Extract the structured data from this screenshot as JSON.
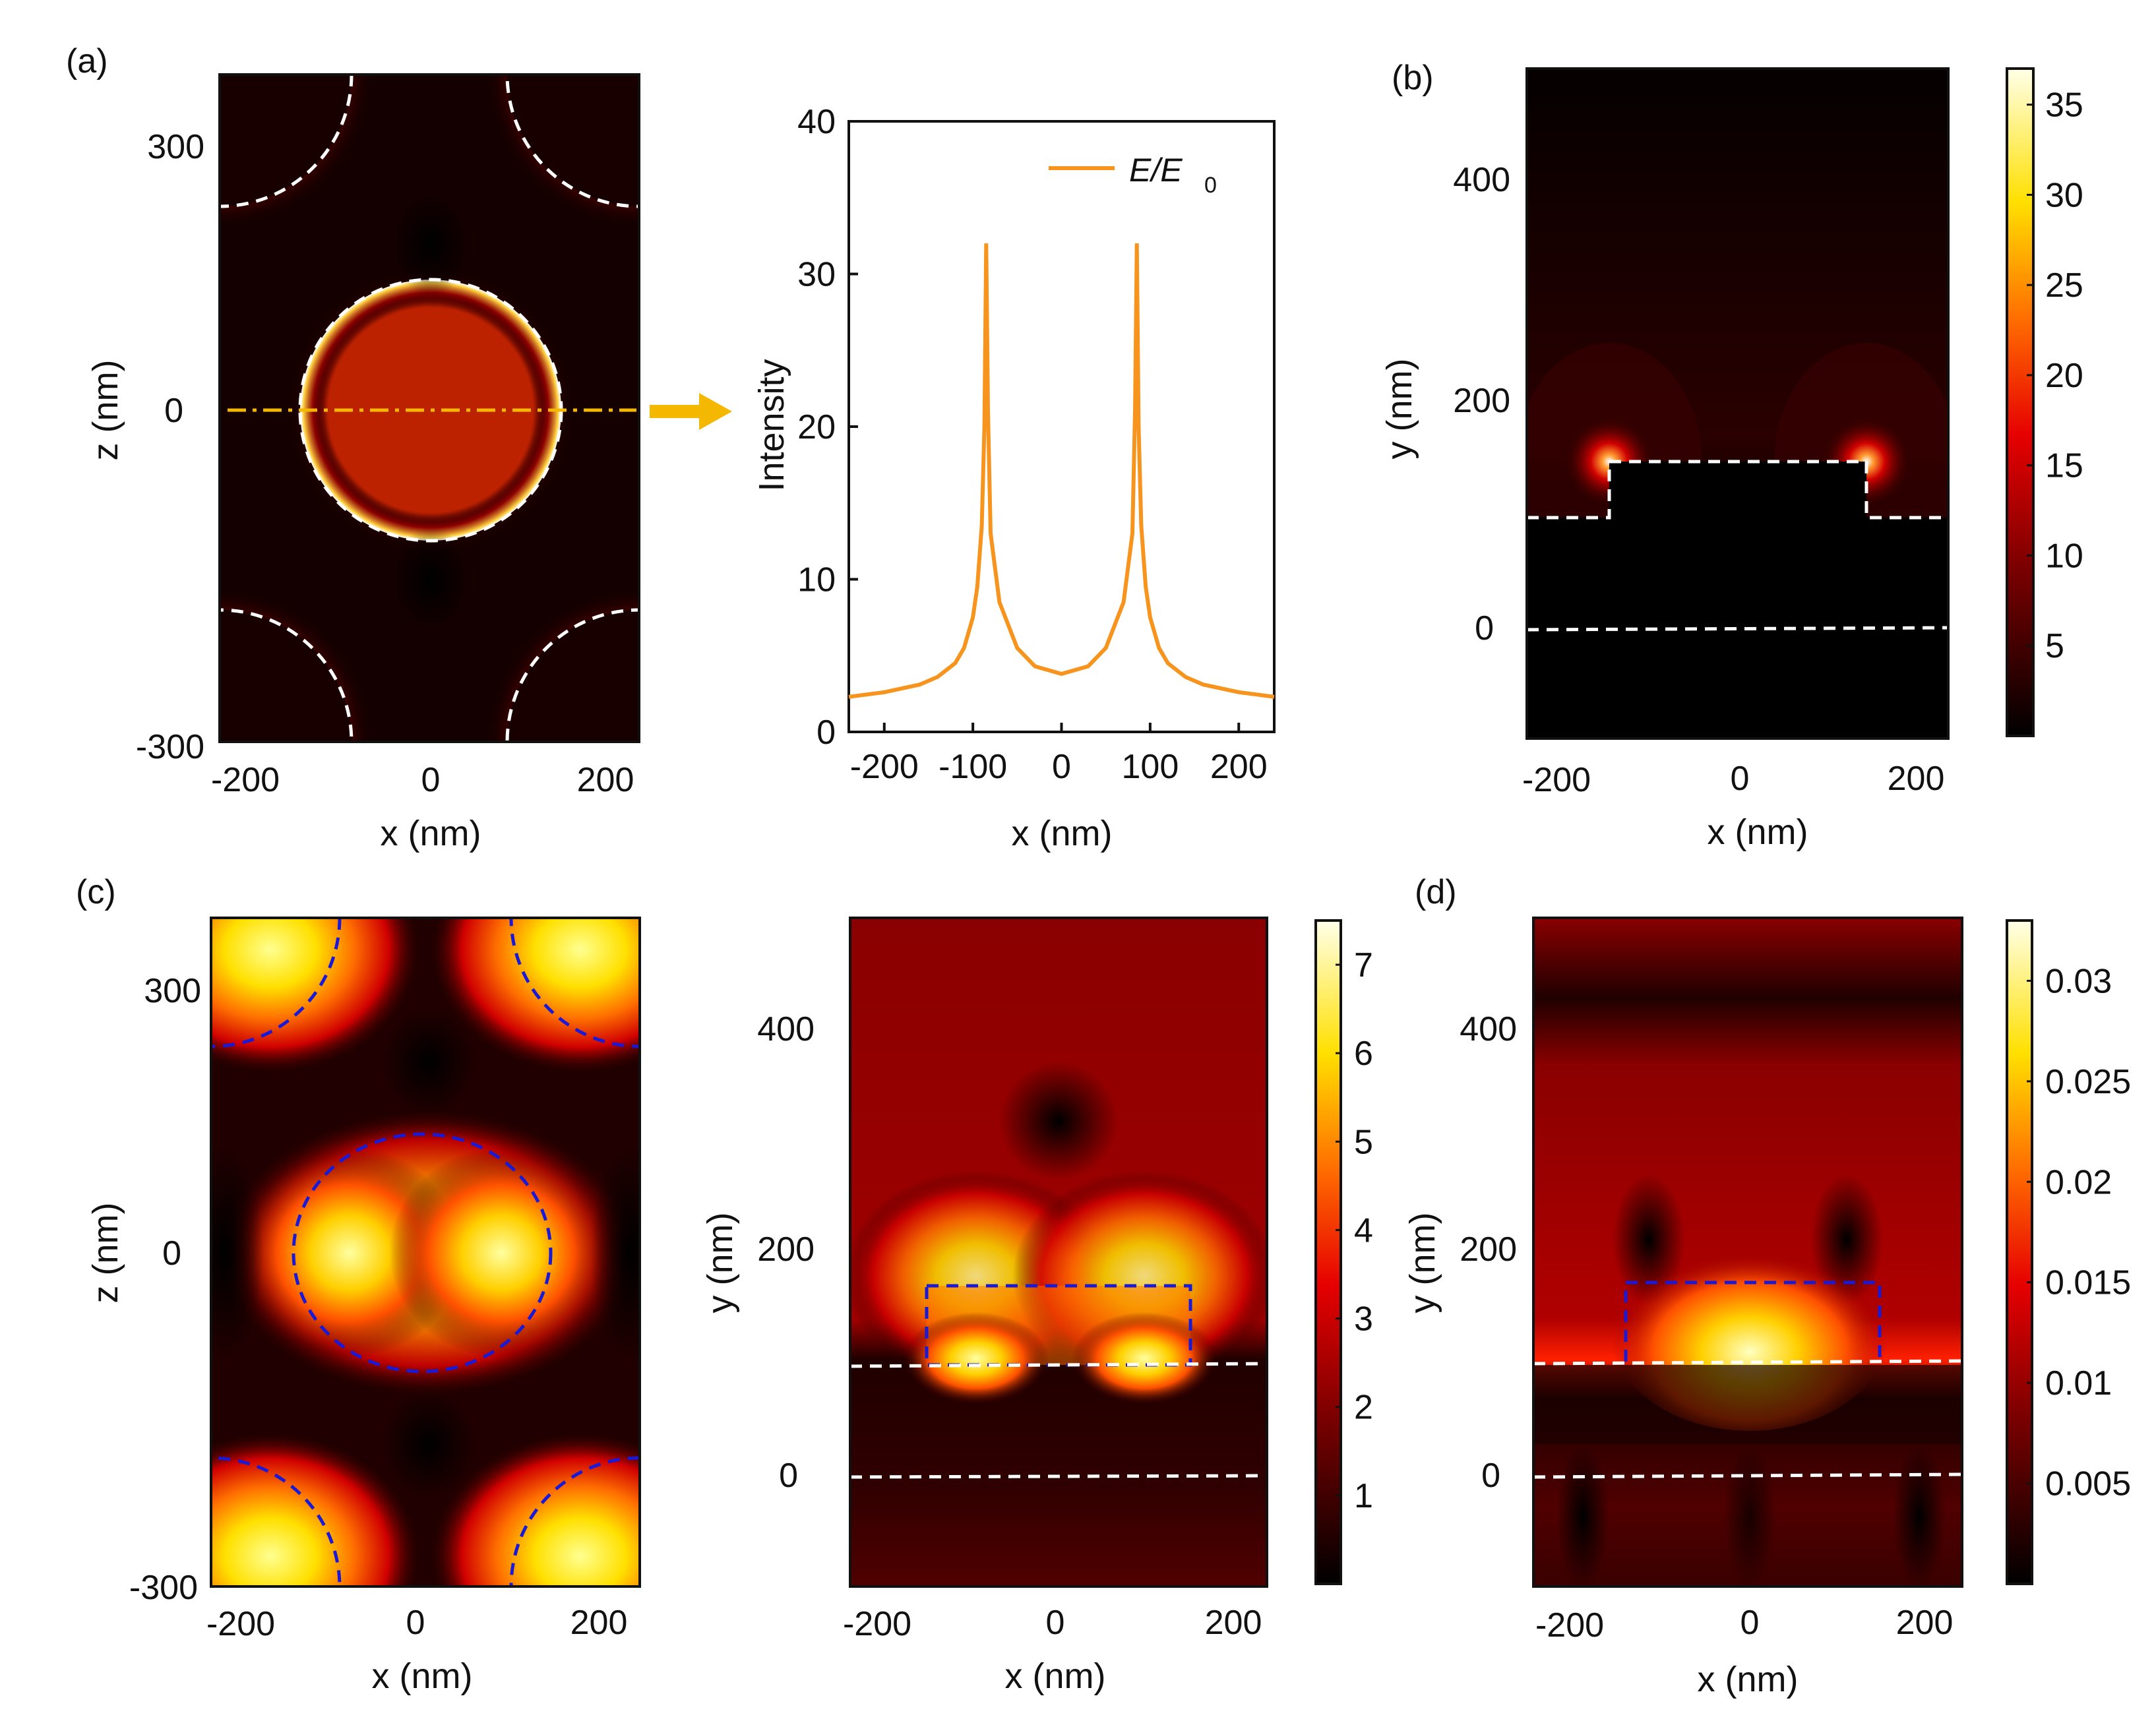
{
  "panels": {
    "a": "(a)",
    "b": "(b)",
    "c": "(c)",
    "d": "(d)"
  },
  "axes": {
    "x_nm": "x (nm)",
    "y_nm": "y (nm)",
    "z_nm": "z (nm)",
    "intensity": "Intensity"
  },
  "ticks": {
    "a_map_x": [
      "-200",
      "0",
      "200"
    ],
    "a_map_z": [
      "300",
      "0",
      "-300"
    ],
    "a_line_x": [
      "-200",
      "-100",
      "0",
      "100",
      "200"
    ],
    "a_line_y": [
      "0",
      "10",
      "20",
      "30",
      "40"
    ],
    "b_x": [
      "-200",
      "0",
      "200"
    ],
    "b_y": [
      "400",
      "200",
      "0"
    ],
    "b_cbar": [
      "35",
      "30",
      "25",
      "20",
      "15",
      "10",
      "5"
    ],
    "c1_x": [
      "-200",
      "0",
      "200"
    ],
    "c1_z": [
      "300",
      "0",
      "-300"
    ],
    "c2_x": [
      "-200",
      "0",
      "200"
    ],
    "c2_y": [
      "400",
      "200",
      "0"
    ],
    "c_cbar": [
      "7",
      "6",
      "5",
      "4",
      "3",
      "2",
      "1"
    ],
    "d_x": [
      "-200",
      "0",
      "200"
    ],
    "d_y": [
      "400",
      "200",
      "0"
    ],
    "d_cbar": [
      "0.03",
      "0.025",
      "0.02",
      "0.015",
      "0.01",
      "0.005"
    ]
  },
  "legend": {
    "label_main": "E/E",
    "label_sub": "0"
  },
  "colors": {
    "line": "#f7941d",
    "arrow": "#f5b800",
    "white_outline": "#ffffff",
    "blue_outline": "#1a1ad6"
  },
  "chart_data": [
    {
      "type": "heatmap",
      "panel": "a",
      "title": "",
      "xlabel": "x (nm)",
      "ylabel": "z (nm)",
      "xlim": [
        -240,
        240
      ],
      "ylim": [
        -380,
        380
      ],
      "xticks": [
        -200,
        0,
        200
      ],
      "yticks": [
        -300,
        0,
        300
      ],
      "colormap": "hot",
      "annotation": "dash-dot cut line at z = 0"
    },
    {
      "type": "line",
      "panel": "a",
      "title": "",
      "xlabel": "x (nm)",
      "ylabel": "Intensity",
      "xlim": [
        -240,
        240
      ],
      "ylim": [
        0,
        40
      ],
      "series": [
        {
          "name": "E/E0",
          "x": [
            -240,
            -200,
            -160,
            -140,
            -120,
            -110,
            -100,
            -95,
            -90,
            -87,
            -85,
            -83,
            -80,
            -70,
            -50,
            -30,
            0,
            30,
            50,
            70,
            80,
            83,
            85,
            87,
            90,
            95,
            100,
            110,
            120,
            140,
            160,
            200,
            240
          ],
          "y": [
            2.3,
            2.6,
            3.1,
            3.6,
            4.5,
            5.5,
            7.5,
            9.5,
            13.5,
            20,
            32,
            21,
            13,
            8.5,
            5.5,
            4.3,
            3.8,
            4.3,
            5.5,
            8.5,
            13,
            21,
            32,
            20,
            13.5,
            9.5,
            7.5,
            5.5,
            4.5,
            3.6,
            3.1,
            2.6,
            2.3
          ]
        }
      ]
    },
    {
      "type": "heatmap",
      "panel": "b",
      "xlabel": "x (nm)",
      "ylabel": "y (nm)",
      "xlim": [
        -240,
        240
      ],
      "ylim": [
        -100,
        500
      ],
      "xticks": [
        -200,
        0,
        200
      ],
      "yticks": [
        0,
        200,
        400
      ],
      "colorbar": {
        "min": 0,
        "max": 37,
        "ticks": [
          5,
          10,
          15,
          20,
          25,
          30,
          35
        ]
      }
    },
    {
      "type": "heatmap",
      "panel": "c-left",
      "xlabel": "x (nm)",
      "ylabel": "z (nm)",
      "xlim": [
        -240,
        240
      ],
      "ylim": [
        -380,
        380
      ],
      "xticks": [
        -200,
        0,
        200
      ],
      "yticks": [
        -300,
        0,
        300
      ]
    },
    {
      "type": "heatmap",
      "panel": "c-right",
      "xlabel": "x (nm)",
      "ylabel": "y (nm)",
      "xlim": [
        -240,
        240
      ],
      "ylim": [
        -100,
        500
      ],
      "xticks": [
        -200,
        0,
        200
      ],
      "yticks": [
        0,
        200,
        400
      ],
      "colorbar": {
        "min": 0,
        "max": 7.5,
        "ticks": [
          1,
          2,
          3,
          4,
          5,
          6,
          7
        ]
      }
    },
    {
      "type": "heatmap",
      "panel": "d",
      "xlabel": "x (nm)",
      "ylabel": "y (nm)",
      "xlim": [
        -240,
        240
      ],
      "ylim": [
        -100,
        500
      ],
      "xticks": [
        -200,
        0,
        200
      ],
      "yticks": [
        0,
        200,
        400
      ],
      "colorbar": {
        "min": 0,
        "max": 0.033,
        "ticks": [
          0.005,
          0.01,
          0.015,
          0.02,
          0.025,
          0.03
        ]
      }
    }
  ]
}
